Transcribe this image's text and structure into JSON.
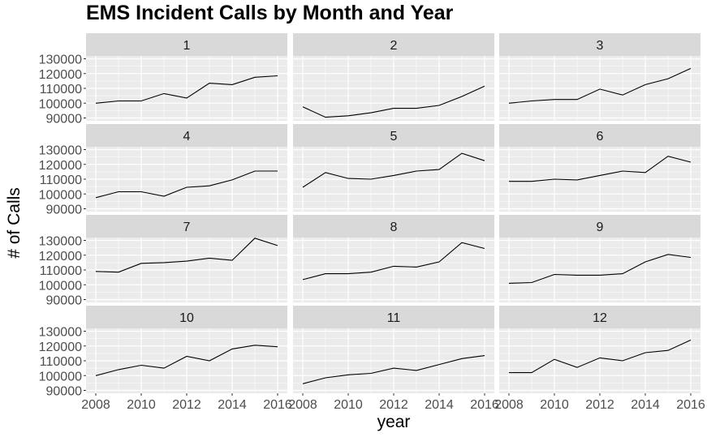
{
  "chart_data": {
    "type": "line",
    "title": "EMS Incident Calls by Month and Year",
    "xlabel": "year",
    "ylabel": "# of Calls",
    "facet_variable": "month",
    "x": [
      2008,
      2009,
      2010,
      2011,
      2012,
      2013,
      2014,
      2015,
      2016
    ],
    "x_ticks": [
      2008,
      2010,
      2012,
      2014,
      2016
    ],
    "xlim": [
      2008,
      2016
    ],
    "y_ticks": [
      90000,
      100000,
      110000,
      120000,
      130000
    ],
    "y_tick_labels": [
      "90000",
      "100000",
      "110000",
      "120000",
      "130000"
    ],
    "ylim": [
      90000,
      130000
    ],
    "grid": true,
    "line_color": "#000000",
    "panel_background": "#ebebeb",
    "strip_background": "#d9d9d9",
    "series": [
      {
        "name": "1",
        "values": [
          100000,
          101500,
          101500,
          106500,
          103500,
          113500,
          112500,
          117500,
          118500
        ]
      },
      {
        "name": "2",
        "values": [
          97500,
          90500,
          91500,
          93500,
          96500,
          96500,
          98500,
          104500,
          111500
        ]
      },
      {
        "name": "3",
        "values": [
          100000,
          101500,
          102500,
          102500,
          109500,
          105500,
          112500,
          116500,
          123500
        ]
      },
      {
        "name": "4",
        "values": [
          97500,
          101500,
          101500,
          98500,
          104500,
          105500,
          109500,
          115500,
          115500
        ]
      },
      {
        "name": "5",
        "values": [
          104500,
          114500,
          110500,
          110000,
          112500,
          115500,
          116500,
          127500,
          122500
        ]
      },
      {
        "name": "6",
        "values": [
          108500,
          108500,
          110000,
          109500,
          112500,
          115500,
          114500,
          125500,
          121500
        ]
      },
      {
        "name": "7",
        "values": [
          109000,
          108500,
          114500,
          115000,
          116000,
          118000,
          116500,
          131500,
          126500
        ]
      },
      {
        "name": "8",
        "values": [
          103500,
          107500,
          107500,
          108500,
          112500,
          112000,
          115500,
          128500,
          124500
        ]
      },
      {
        "name": "9",
        "values": [
          101000,
          101500,
          107000,
          106500,
          106500,
          107500,
          115500,
          120500,
          118500
        ]
      },
      {
        "name": "10",
        "values": [
          100000,
          104000,
          107000,
          105000,
          113000,
          110000,
          118000,
          120500,
          119500
        ]
      },
      {
        "name": "11",
        "values": [
          94500,
          98500,
          100500,
          101500,
          105000,
          103500,
          107500,
          111500,
          113500
        ]
      },
      {
        "name": "12",
        "values": [
          102000,
          102000,
          111000,
          105500,
          112000,
          110000,
          115500,
          117000,
          124000
        ]
      }
    ]
  }
}
